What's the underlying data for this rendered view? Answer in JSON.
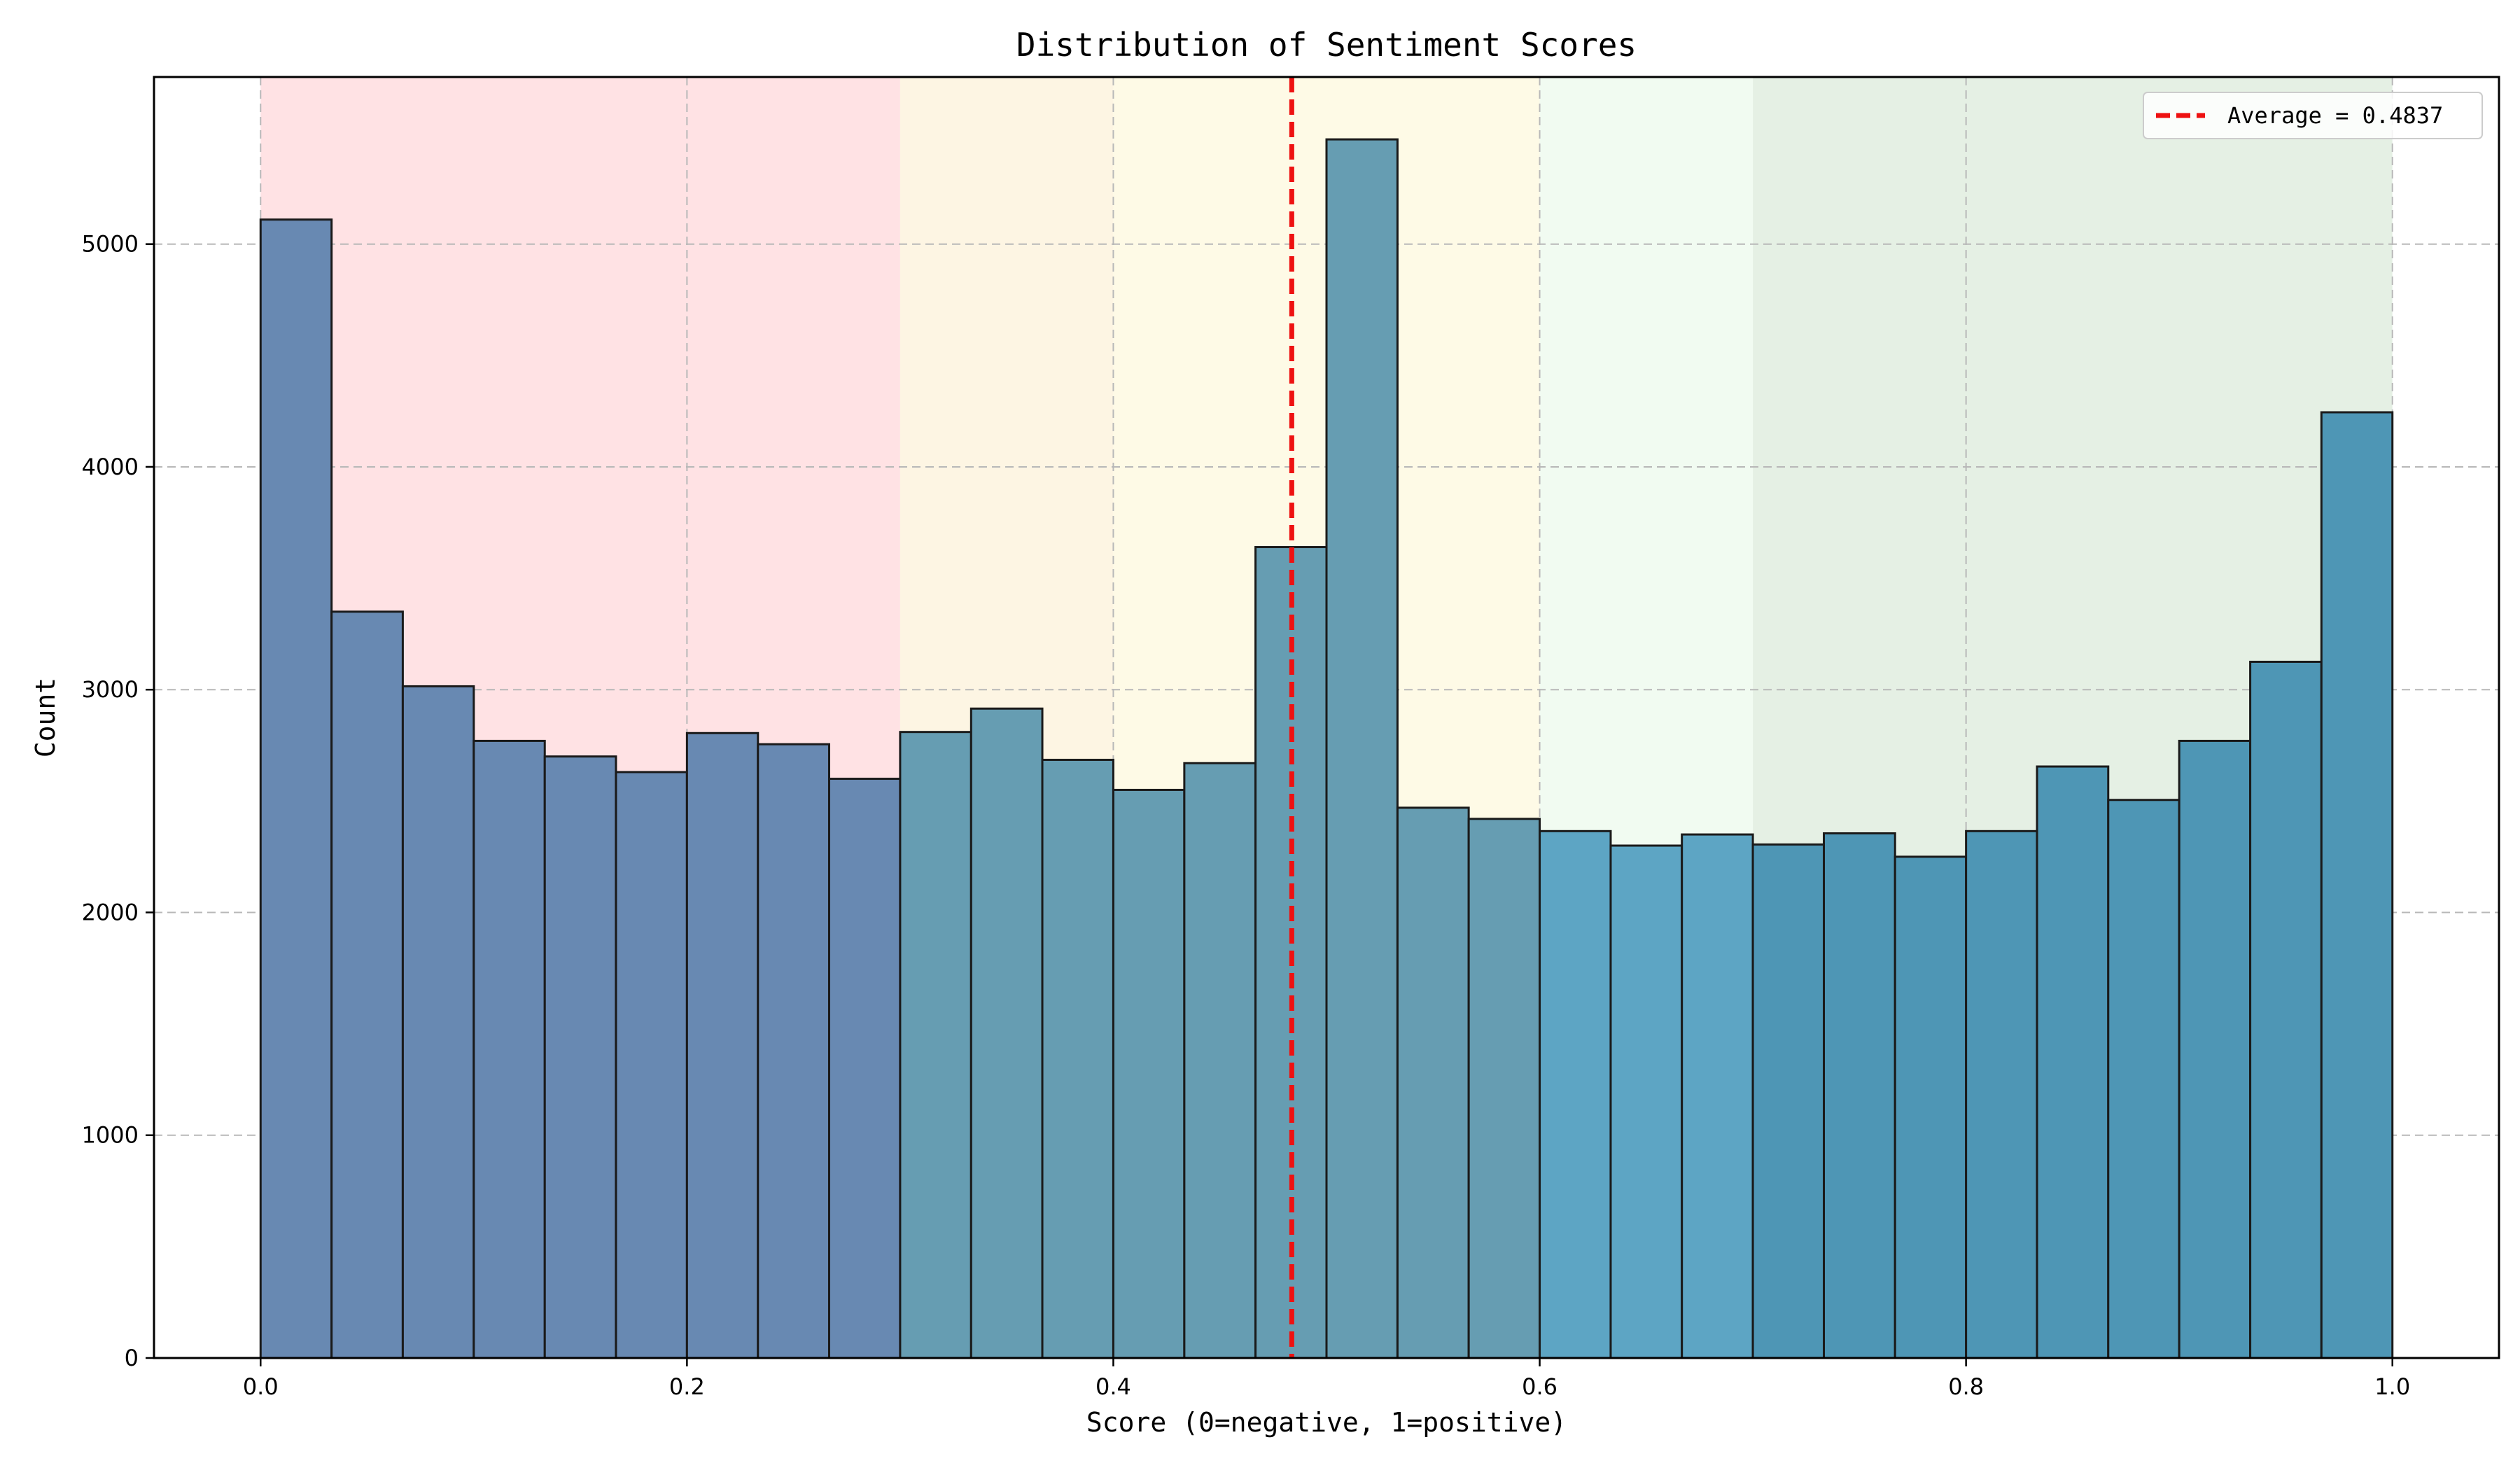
{
  "chart_data": {
    "type": "bar",
    "title": "Distribution of Sentiment Scores",
    "xlabel": "Score (0=negative, 1=positive)",
    "ylabel": "Count",
    "xlim": [
      -0.05,
      1.05
    ],
    "ylim": [
      0,
      5750
    ],
    "xticks": [
      0.0,
      0.2,
      0.4,
      0.6,
      0.8,
      1.0
    ],
    "xtick_labels": [
      "0.0",
      "0.2",
      "0.4",
      "0.6",
      "0.8",
      "1.0"
    ],
    "yticks": [
      0,
      1000,
      2000,
      3000,
      4000,
      5000
    ],
    "ytick_labels": [
      "0",
      "1000",
      "2000",
      "3000",
      "4000",
      "5000"
    ],
    "grid": true,
    "bin_edges": [
      0.0,
      0.0333,
      0.0667,
      0.1,
      0.1333,
      0.1667,
      0.2,
      0.2333,
      0.2667,
      0.3,
      0.3333,
      0.3667,
      0.4,
      0.4333,
      0.4667,
      0.5,
      0.5333,
      0.5667,
      0.6,
      0.6333,
      0.6667,
      0.7,
      0.7333,
      0.7667,
      0.8,
      0.8333,
      0.8667,
      0.9,
      0.9333,
      0.9667,
      1.0
    ],
    "counts": [
      5110,
      3350,
      3015,
      2770,
      2700,
      2630,
      2805,
      2755,
      2600,
      2810,
      2915,
      2685,
      2550,
      2670,
      3640,
      5470,
      2470,
      2420,
      2365,
      2300,
      2350,
      2305,
      2355,
      2250,
      2365,
      2655,
      2505,
      2770,
      3125,
      4245
    ],
    "bar_colors": [
      "#6889b2",
      "#6889b2",
      "#6889b2",
      "#6889b2",
      "#6889b2",
      "#6889b2",
      "#6889b2",
      "#6889b2",
      "#6889b2",
      "#669db2",
      "#669db2",
      "#669db2",
      "#669db2",
      "#669db2",
      "#669db2",
      "#669db2",
      "#669db2",
      "#669db2",
      "#5da5c4",
      "#5da5c4",
      "#5da5c4",
      "#4e96b5",
      "#4e96b5",
      "#4e96b5",
      "#4e96b5",
      "#4e96b5",
      "#4e96b5",
      "#4e96b5",
      "#4e96b5",
      "#4e96b5"
    ],
    "regions": [
      {
        "from": 0.0,
        "to": 0.3,
        "color": "#ffe2e4"
      },
      {
        "from": 0.3,
        "to": 0.4,
        "color": "#fdf5e3"
      },
      {
        "from": 0.4,
        "to": 0.6,
        "color": "#fefae6"
      },
      {
        "from": 0.6,
        "to": 0.7,
        "color": "#f1fbf1"
      },
      {
        "from": 0.7,
        "to": 1.0,
        "color": "#e5f0e4"
      }
    ],
    "average": {
      "value": 0.4837,
      "label": "Average = 0.4837",
      "color": "#ee1111"
    },
    "legend_position": "top-right"
  }
}
